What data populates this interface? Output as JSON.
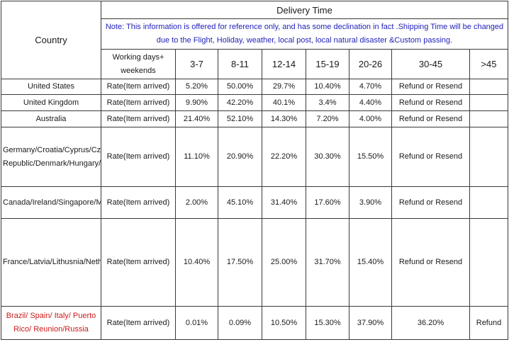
{
  "table": {
    "country_header": "Country",
    "title": "Delivery Time",
    "note": "Note: This information is offered for reference only, and has some declination in fact .Shipping Time will be changed due to the Flight, Holiday, weather, local post, local natural disaster &Custom passing.",
    "working_days_label": "Working days+ weekends",
    "ranges": [
      "3-7",
      "8-11",
      "12-14",
      "15-19",
      "20-26",
      "30-45",
      ">45"
    ],
    "rows": [
      {
        "country": "United States",
        "rate_label": "Rate(Item arrived)",
        "values": [
          "5.20%",
          "50.00%",
          "29.7%",
          "10.40%",
          "4.70%",
          "Refund or Resend",
          ""
        ]
      },
      {
        "country": "United Kingdom",
        "rate_label": "Rate(Item arrived)",
        "values": [
          "9.90%",
          "42.20%",
          "40.1%",
          "3.4%",
          "4.40%",
          "Refund or Resend",
          ""
        ]
      },
      {
        "country": "Australia",
        "rate_label": "Rate(Item arrived)",
        "values": [
          "21.40%",
          "52.10%",
          "14.30%",
          "7.20%",
          "4.00%",
          "Refund or Resend",
          ""
        ]
      },
      {
        "country": "Germany/Croatia/Cyprus/Czech Republic/Denmark/Hungary/Israel/Finland",
        "rate_label": "Rate(Item arrived)",
        "values": [
          "11.10%",
          "20.90%",
          "22.20%",
          "30.30%",
          "15.50%",
          "Refund or Resend",
          ""
        ]
      },
      {
        "country": "Canada/Ireland/Singapore/Malaysia/Brunei",
        "rate_label": "Rate(Item arrived)",
        "values": [
          "2.00%",
          "45.10%",
          "31.40%",
          "17.60%",
          "3.90%",
          "Refund or Resend",
          ""
        ]
      },
      {
        "country": "France/Latvia/Lithusnia/Netherlands/Norway/Romania/Sweden/Turkey/Poland/Malta/Mexico/Greece/Bulgaria/Portugal/Ukraine",
        "rate_label": "Rate(Item arrived)",
        "values": [
          "10.40%",
          "17.50%",
          "25.00%",
          "31.70%",
          "15.40%",
          "Refund or Resend",
          ""
        ]
      },
      {
        "country": "Brazil/ Spain/ Italy/ Puerto Rico/ Reunion/Russia",
        "rate_label": "Rate(Item arrived)",
        "values": [
          "0.01%",
          "0.09%",
          "10.50%",
          "15.30%",
          "37.90%",
          "36.20%",
          "Refund"
        ]
      }
    ],
    "colors": {
      "note": "#1f1fb8",
      "highlight_country": "#cc1a1a",
      "border": "#3a3a3a"
    }
  }
}
